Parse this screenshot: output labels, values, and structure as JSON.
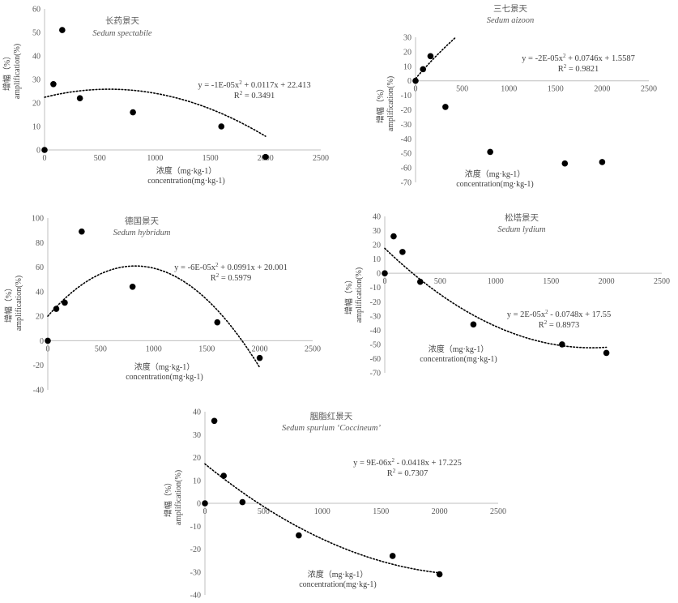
{
  "chart_data": [
    {
      "type": "scatter",
      "title": "长药景天",
      "subtitle": "Sedum spectabile",
      "xlabel_cn": "浓度（mg·kg-1）",
      "xlabel": "concentration(mg·kg-1)",
      "ylabel_cn": "增幅（%）",
      "ylabel": "amplification(%)",
      "xlim": [
        0,
        2500
      ],
      "ylim": [
        0,
        60
      ],
      "x_ticks": [
        "0",
        "500",
        "1000",
        "1500",
        "2000",
        "2500"
      ],
      "y_ticks": [
        "0",
        "10",
        "20",
        "30",
        "40",
        "50",
        "60"
      ],
      "x": [
        0,
        80,
        160,
        320,
        800,
        1600,
        2000
      ],
      "y": [
        0,
        28,
        51,
        22,
        16,
        10,
        -3
      ],
      "trendline": {
        "type": "poly2",
        "a": -1e-05,
        "b": 0.0117,
        "c": 22.413
      },
      "equation": "y = -1E-05x",
      "equation_rest": " + 0.0117x + 22.413",
      "r2_label": "R",
      "r2_value": " = 0.3491"
    },
    {
      "type": "scatter",
      "title": "三七景天",
      "subtitle": "Sedum aizoon",
      "xlabel_cn": "浓度（mg·kg-1）",
      "xlabel": "concentration(mg·kg-1)",
      "ylabel_cn": "增幅（%）",
      "ylabel": "amplification(%)",
      "xlim": [
        0,
        2500
      ],
      "ylim": [
        -70,
        30
      ],
      "x_ticks": [
        "0",
        "500",
        "1000",
        "1500",
        "2000",
        "2500"
      ],
      "y_ticks": [
        "-70",
        "-60",
        "-50",
        "-40",
        "-30",
        "-20",
        "-10",
        "0",
        "10",
        "20",
        "30"
      ],
      "x": [
        0,
        80,
        160,
        320,
        800,
        1600,
        2000
      ],
      "y": [
        0,
        8,
        17,
        -18,
        -49,
        -57,
        -56
      ],
      "trendline": {
        "type": "poly2",
        "a": -2e-05,
        "b": 0.0746,
        "c": 1.5587
      },
      "equation": "y = -2E-05x",
      "equation_rest": " + 0.0746x + 1.5587",
      "r2_label": "R",
      "r2_value": " = 0.9821"
    },
    {
      "type": "scatter",
      "title": "德国景天",
      "subtitle": "Sedum hybridum",
      "xlabel_cn": "浓度（mg·kg-1）",
      "xlabel": "concentration(mg·kg-1)",
      "ylabel_cn": "增幅（%）",
      "ylabel": "amplification(%)",
      "xlim": [
        0,
        2500
      ],
      "ylim": [
        -40,
        100
      ],
      "x_ticks": [
        "0",
        "500",
        "1000",
        "1500",
        "2000",
        "2500"
      ],
      "y_ticks": [
        "-40",
        "-20",
        "0",
        "20",
        "40",
        "60",
        "80",
        "100"
      ],
      "x": [
        0,
        80,
        160,
        320,
        800,
        1600,
        2000
      ],
      "y": [
        0,
        26,
        31,
        89,
        44,
        15,
        -14
      ],
      "trendline": {
        "type": "poly2",
        "a": -6e-05,
        "b": 0.0991,
        "c": 20.001
      },
      "equation": "y = -6E-05x",
      "equation_rest": " + 0.0991x + 20.001",
      "r2_label": "R",
      "r2_value": " = 0.5979"
    },
    {
      "type": "scatter",
      "title": "松塔景天",
      "subtitle": "Sedum lydium",
      "xlabel_cn": "浓度（mg·kg-1）",
      "xlabel": "concentration(mg·kg-1)",
      "ylabel_cn": "增幅（%）",
      "ylabel": "amplification(%)",
      "xlim": [
        0,
        2500
      ],
      "ylim": [
        -70,
        40
      ],
      "x_ticks": [
        "0",
        "500",
        "1000",
        "1500",
        "2000",
        "2500"
      ],
      "y_ticks": [
        "-70",
        "-60",
        "-50",
        "-40",
        "-30",
        "-20",
        "-10",
        "0",
        "10",
        "20",
        "30",
        "40"
      ],
      "x": [
        0,
        80,
        160,
        320,
        800,
        1600,
        2000
      ],
      "y": [
        0,
        26,
        15,
        -6,
        -36,
        -50,
        -56
      ],
      "trendline": {
        "type": "poly2",
        "a": 2e-05,
        "b": -0.0748,
        "c": 17.55
      },
      "equation": "y = 2E-05x",
      "equation_rest": " - 0.0748x + 17.55",
      "r2_label": "R",
      "r2_value": " = 0.8973"
    },
    {
      "type": "scatter",
      "title": "胭脂红景天",
      "subtitle": "Sedum spurium ‘Coccineum’",
      "xlabel_cn": "浓度（mg·kg-1）",
      "xlabel": "concentration(mg·kg-1)",
      "ylabel_cn": "增幅（%）",
      "ylabel": "amplification(%)",
      "xlim": [
        0,
        2500
      ],
      "ylim": [
        -40,
        40
      ],
      "x_ticks": [
        "0",
        "500",
        "1000",
        "1500",
        "2000",
        "2500"
      ],
      "y_ticks": [
        "-40",
        "-30",
        "-20",
        "-10",
        "0",
        "10",
        "20",
        "30",
        "40"
      ],
      "x": [
        0,
        80,
        160,
        320,
        800,
        1600,
        2000
      ],
      "y": [
        0,
        36,
        12,
        0.5,
        -14,
        -23,
        -31
      ],
      "trendline": {
        "type": "poly2",
        "a": 9e-06,
        "b": -0.0418,
        "c": 17.225
      },
      "equation": "y = 9E-06x",
      "equation_rest": " - 0.0418x + 17.225",
      "r2_label": "R",
      "r2_value": " = 0.7307"
    }
  ],
  "colors": {
    "marker": "#000000",
    "axis": "#bfbfbf",
    "trendline": "#000000",
    "text": "#595959"
  }
}
